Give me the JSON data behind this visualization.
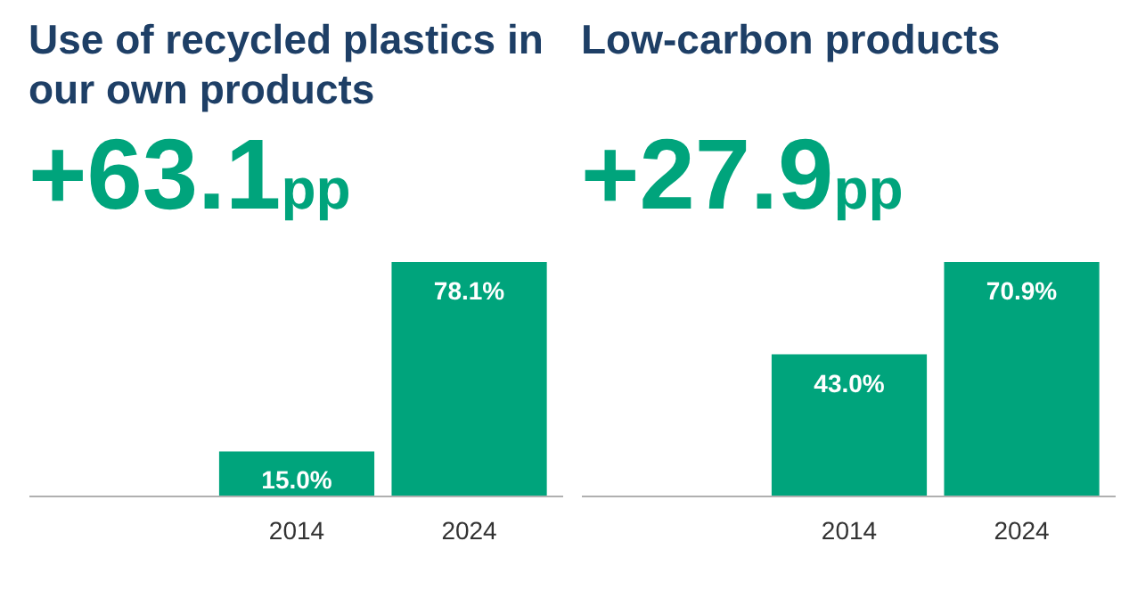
{
  "chart_data": [
    {
      "type": "bar",
      "title": "Use of recycled plastics in our own products",
      "subtitle": "+63.1pp",
      "categories": [
        null,
        "2014",
        "2024"
      ],
      "values": [
        null,
        15.0,
        78.1
      ],
      "value_labels": [
        null,
        "15.0%",
        "78.1%"
      ],
      "color": "#00a47c"
    },
    {
      "type": "bar",
      "title": "Low-carbon products",
      "subtitle": "+27.9pp",
      "categories": [
        null,
        "2014",
        "2024"
      ],
      "values": [
        null,
        43.0,
        70.9
      ],
      "value_labels": [
        null,
        "43.0%",
        "70.9%"
      ],
      "color": "#00a47c"
    }
  ]
}
